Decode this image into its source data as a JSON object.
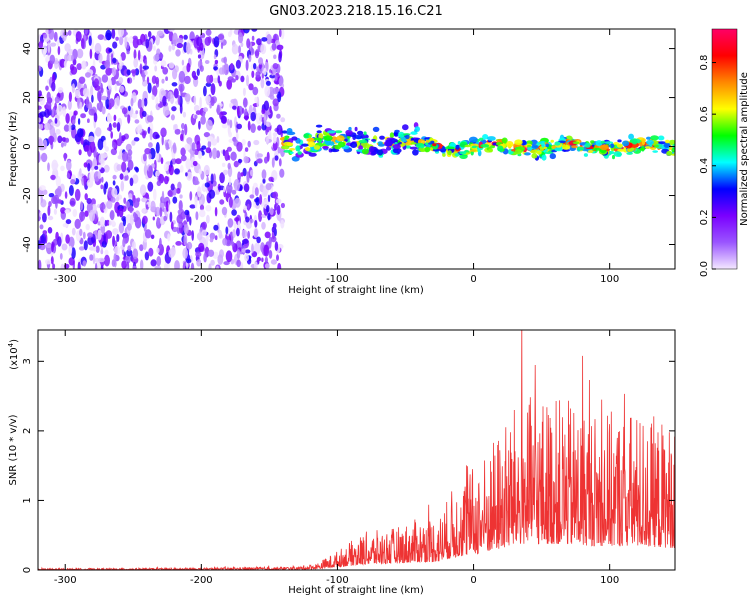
{
  "figure": {
    "title": "GN03.2023.218.15.16.C21"
  },
  "chart_data": [
    {
      "type": "heatmap",
      "xlabel": "Height of straight line (km)",
      "ylabel": "Frequency (Hz)",
      "xlim": [
        -320,
        148
      ],
      "ylim": [
        -50,
        48
      ],
      "x_ticks": [
        -300,
        -200,
        -100,
        0,
        100
      ],
      "y_ticks": [
        -40,
        -20,
        0,
        20,
        40
      ],
      "grid": false,
      "regions": [
        {
          "x_range": [
            -320,
            -140
          ],
          "y_range": [
            -50,
            48
          ],
          "pattern": "scattered patches",
          "amplitude": [
            0.0,
            0.3
          ]
        },
        {
          "x_range": [
            -140,
            -40
          ],
          "y_center": 2,
          "half_width_hz": 5,
          "pattern": "band",
          "amplitude": [
            0.2,
            0.8
          ]
        },
        {
          "x_range": [
            -40,
            148
          ],
          "y_center": 0,
          "half_width_hz": 3,
          "pattern": "band",
          "amplitude": [
            0.3,
            0.95
          ]
        }
      ],
      "colorbar": {
        "label": "Normalized spectral amplitude",
        "range": [
          0,
          0.93
        ],
        "ticks": [
          0.0,
          0.2,
          0.4,
          0.6,
          0.8
        ],
        "colors": [
          "#f4e8ff",
          "#9a55ff",
          "#7a00ff",
          "#0000ff",
          "#00ffff",
          "#00ff00",
          "#ffff00",
          "#ff8800",
          "#ff0000",
          "#ff0066"
        ]
      }
    },
    {
      "type": "line",
      "xlabel": "Height of straight line (km)",
      "ylabel": "SNR (10 * v/v)",
      "yscale_label": "(x10",
      "yscale_exp": "4",
      "yscale_close": ")",
      "xlim": [
        -320,
        148
      ],
      "ylim": [
        0,
        3.45
      ],
      "x_ticks": [
        -300,
        -200,
        -100,
        0,
        100
      ],
      "y_ticks": [
        0,
        1,
        2,
        3
      ],
      "grid": false,
      "series": [
        {
          "color": "#ee3333",
          "envelope": {
            "x": [
              -320,
              -200,
              -130,
              -115,
              -100,
              -80,
              -60,
              -40,
              -25,
              -15,
              -5,
              5,
              15,
              25,
              35,
              60,
              90,
              120,
              148
            ],
            "y": [
              0.02,
              0.03,
              0.05,
              0.1,
              0.28,
              0.55,
              0.6,
              0.75,
              0.8,
              1.2,
              1.4,
              1.6,
              1.9,
              2.2,
              2.5,
              2.5,
              2.3,
              2.3,
              2.1
            ]
          }
        }
      ]
    }
  ]
}
